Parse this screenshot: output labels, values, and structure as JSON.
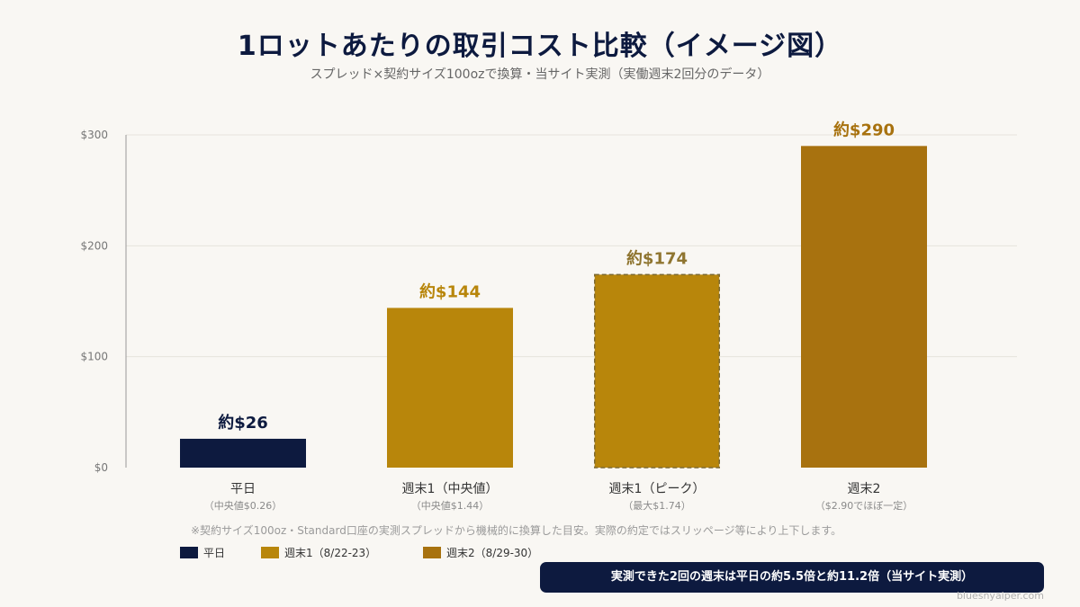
{
  "chart_data": {
    "type": "bar",
    "title": "1ロットあたりの取引コスト比較（イメージ図）",
    "subtitle": "スプレッド×契約サイズ100ozで換算・当サイト実測（実働週末2回分のデータ）",
    "xlabel": "",
    "ylabel": "",
    "ylim": [
      0,
      300
    ],
    "y_ticks": [
      {
        "value": 0,
        "label": "$0"
      },
      {
        "value": 100,
        "label": "$100"
      },
      {
        "value": 200,
        "label": "$200"
      },
      {
        "value": 300,
        "label": "$300"
      }
    ],
    "grid": true,
    "bars": [
      {
        "category": "平日",
        "sub": "（中央値$0.26）",
        "value": 26,
        "label": "約$26",
        "color": "#0d1a3f",
        "label_color": "#0d1a3f",
        "dashed": false
      },
      {
        "category": "週末1（中央値）",
        "sub": "（中央値$1.44）",
        "value": 144,
        "label": "約$144",
        "color": "#b8860b",
        "label_color": "#b8860b",
        "dashed": false
      },
      {
        "category": "週末1（ピーク）",
        "sub": "（最大$1.74）",
        "value": 174,
        "label": "約$174",
        "color": "#b8860b",
        "label_color": "#8f7530",
        "dashed": true
      },
      {
        "category": "週末2",
        "sub": "（$2.90でほぼ一定）",
        "value": 290,
        "label": "約$290",
        "color": "#a8720f",
        "label_color": "#a8720f",
        "dashed": false
      }
    ],
    "legend": [
      {
        "name": "平日",
        "color": "#0d1a3f"
      },
      {
        "name": "週末1（8/22-23）",
        "color": "#b8860b"
      },
      {
        "name": "週末2（8/29-30）",
        "color": "#a8720f"
      }
    ],
    "legend_position": "bottom-left"
  },
  "note": "※契約サイズ100oz・Standard口座の実測スプレッドから機械的に換算した目安。実際の約定ではスリッページ等により上下します。",
  "callout": "実測できた2回の週末は平日の約5.5倍と約11.2倍（当サイト実測）",
  "footer": "bluesnyaiper.com"
}
